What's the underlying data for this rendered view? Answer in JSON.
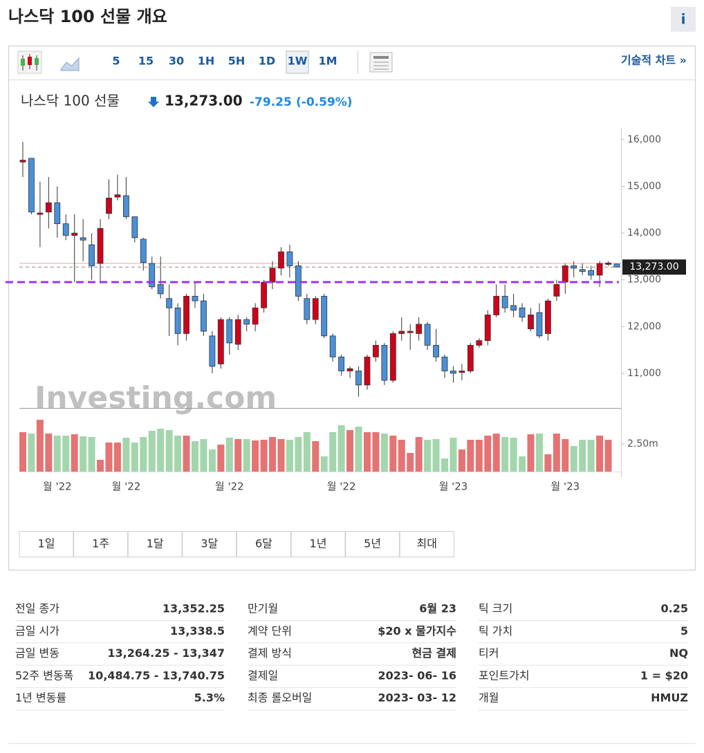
{
  "header": {
    "title": "나스닥 100 선물 개요",
    "info": "i"
  },
  "toolbar": {
    "intervals": [
      "5",
      "15",
      "30",
      "1H",
      "5H",
      "1D",
      "1W",
      "1M"
    ],
    "active": "1W",
    "link": "기술적 차트 »"
  },
  "quote": {
    "name": "나스닥 100 선물",
    "price": "13,273.00",
    "change": "-79.25",
    "change_pct": "(-0.59%)"
  },
  "chart_data": {
    "type": "candlestick",
    "watermark": "Investing.com",
    "categories": [
      null,
      null,
      null,
      null,
      "월 '22",
      null,
      null,
      null,
      null,
      null,
      null,
      null,
      "월 '22",
      null,
      null,
      null,
      null,
      null,
      null,
      null,
      null,
      null,
      null,
      null,
      "월 '22",
      null,
      null,
      null,
      null,
      null,
      null,
      null,
      null,
      null,
      null,
      null,
      null,
      "월 '22",
      null,
      null,
      null,
      null,
      null,
      null,
      null,
      null,
      null,
      null,
      null,
      null,
      "월 '23",
      null,
      null,
      null,
      null,
      null,
      null,
      null,
      null,
      null,
      null,
      null,
      null,
      "월 '23",
      null,
      null,
      null,
      null,
      null,
      null
    ],
    "open": [
      15520,
      15600,
      14400,
      14450,
      14650,
      14200,
      13950,
      13900,
      13750,
      13350,
      14420,
      14770,
      14800,
      14350,
      13870,
      13350,
      12900,
      12600,
      12400,
      11850,
      12650,
      12550,
      11800,
      11200,
      12150,
      11620,
      12150,
      12050,
      12400,
      12950,
      13250,
      13600,
      13300,
      12600,
      12150,
      12650,
      11800,
      11350,
      11050,
      11050,
      10750,
      11350,
      11600,
      10850,
      11850,
      11870,
      11850,
      12050,
      11600,
      11350,
      11050,
      11020,
      11050,
      11600,
      11700,
      12250,
      12650,
      12450,
      12400,
      11950,
      12300,
      11850,
      12650,
      12950,
      13300,
      13220,
      13200,
      13100,
      13330,
      13338.5
    ],
    "high": [
      15950,
      15600,
      15100,
      15200,
      15000,
      14400,
      14400,
      14300,
      14000,
      14300,
      15150,
      15250,
      15200,
      14350,
      13900,
      13500,
      13500,
      12900,
      12500,
      12700,
      12950,
      12700,
      11900,
      12200,
      12200,
      12250,
      12200,
      12500,
      13000,
      13400,
      13700,
      13750,
      13400,
      12700,
      12650,
      12700,
      11850,
      11400,
      11150,
      11150,
      11400,
      11700,
      11650,
      11900,
      12200,
      12050,
      12200,
      12100,
      11950,
      11400,
      11150,
      11200,
      11650,
      11750,
      12350,
      12900,
      12900,
      12700,
      12500,
      12400,
      12500,
      12600,
      13000,
      13350,
      13400,
      13350,
      13300,
      13400,
      13400,
      13347
    ],
    "low": [
      15200,
      14400,
      13700,
      14100,
      13900,
      13850,
      12950,
      13400,
      13000,
      12950,
      14300,
      14700,
      14300,
      13800,
      13200,
      12800,
      12600,
      11800,
      11600,
      11700,
      12400,
      11800,
      11000,
      11100,
      11400,
      11500,
      11900,
      11900,
      12300,
      12800,
      13100,
      13050,
      12550,
      12050,
      12050,
      11750,
      11250,
      10950,
      10900,
      10500,
      10650,
      11250,
      10750,
      10800,
      11700,
      11500,
      11700,
      11500,
      11250,
      10900,
      10800,
      10850,
      11000,
      11550,
      11600,
      12200,
      12300,
      12200,
      12100,
      11900,
      11750,
      11700,
      12550,
      12700,
      13050,
      13100,
      13000,
      12850,
      13300,
      13264.25
    ],
    "close": [
      15560,
      14450,
      14430,
      14650,
      14200,
      13950,
      14000,
      13850,
      13300,
      14100,
      14750,
      14820,
      14350,
      13900,
      13370,
      12850,
      12700,
      12400,
      11850,
      12650,
      12550,
      11900,
      11150,
      12150,
      11650,
      12150,
      12050,
      12400,
      12950,
      13250,
      13600,
      13300,
      12650,
      12150,
      12600,
      11800,
      11350,
      11050,
      11100,
      10750,
      11350,
      11600,
      10850,
      11850,
      11900,
      11900,
      12050,
      11600,
      11350,
      11050,
      11000,
      11050,
      11600,
      11700,
      12250,
      12650,
      12400,
      12350,
      12200,
      12250,
      11800,
      12550,
      12900,
      13300,
      13250,
      13180,
      13100,
      13350,
      13360,
      13273
    ],
    "volume": [
      3562500,
      3437500,
      4687500,
      3437500,
      3250000,
      3250000,
      3375000,
      3187500,
      3125000,
      1062500,
      2625000,
      2625000,
      3062500,
      2625000,
      3125000,
      3687500,
      3875000,
      3750000,
      3250000,
      3250000,
      2750000,
      2937500,
      2000000,
      2437500,
      3062500,
      2937500,
      2937500,
      2812500,
      2875000,
      3125000,
      2937500,
      2875000,
      3125000,
      3562500,
      2750000,
      1375000,
      3562500,
      4187500,
      3750000,
      4062500,
      3562500,
      3562500,
      3437500,
      3250000,
      2875000,
      1687500,
      3125000,
      2875000,
      2937500,
      1187500,
      3062500,
      2000000,
      2875000,
      2875000,
      3250000,
      3437500,
      3125000,
      3062500,
      1375000,
      3375000,
      3437500,
      1562500,
      3437500,
      2937500,
      2312500,
      2875000,
      2875000,
      3250000,
      2875000,
      null
    ],
    "up_color": "#d0021b",
    "down_color": "#4a90d9",
    "volume_up_color": "#e57373",
    "volume_down_color": "#a3d6ad",
    "ylim": [
      10250,
      16250
    ],
    "yticks": [
      {
        "value": 11000,
        "label": "11,000"
      },
      {
        "value": 12000,
        "label": "12,000"
      },
      {
        "value": 13000,
        "label": "13,000"
      },
      {
        "value": 14000,
        "label": "14,000"
      },
      {
        "value": 15000,
        "label": "15,000"
      },
      {
        "value": 16000,
        "label": "16,000"
      }
    ],
    "volume_ylim": [
      0,
      5750000
    ],
    "volume_yticks": [
      {
        "value": 2500000,
        "label": "2.50m"
      }
    ],
    "last_price": {
      "value": 13273,
      "label": "13,273.00"
    },
    "previous_close": 13352.25,
    "grid": false
  },
  "ranges": [
    "1일",
    "1주",
    "1달",
    "3달",
    "6달",
    "1년",
    "5년",
    "최대"
  ],
  "table": {
    "rows": [
      [
        "전일 종가",
        "13,352.25",
        "만기월",
        "6월 23",
        "틱 크기",
        "0.25"
      ],
      [
        "금일 시가",
        "13,338.5",
        "계약 단위",
        "$20 x 물가지수",
        "틱 가치",
        "5"
      ],
      [
        "금일 변동",
        "13,264.25 - 13,347",
        "결제 방식",
        "현금 결제",
        "티커",
        "NQ"
      ],
      [
        "52주 변동폭",
        "10,484.75 - 13,740.75",
        "결제일",
        "2023- 06- 16",
        "포인트가치",
        "1 = $20"
      ],
      [
        "1년 변동률",
        "5.3%",
        "최종 롤오버일",
        "2023- 03- 12",
        "개월",
        "HMUZ"
      ]
    ]
  }
}
